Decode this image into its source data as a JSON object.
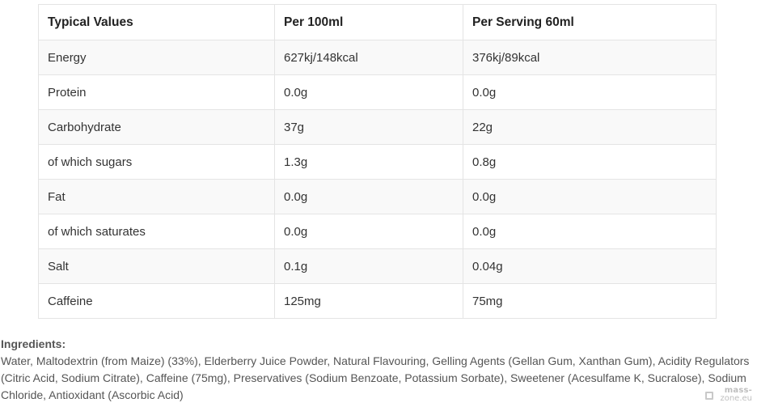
{
  "table": {
    "headers": [
      "Typical Values",
      "Per 100ml",
      "Per Serving 60ml"
    ],
    "rows": [
      [
        "Energy",
        "627kj/148kcal",
        "376kj/89kcal"
      ],
      [
        "Protein",
        "0.0g",
        "0.0g"
      ],
      [
        "Carbohydrate",
        "37g",
        "22g"
      ],
      [
        "of which sugars",
        "1.3g",
        "0.8g"
      ],
      [
        "Fat",
        "0.0g",
        "0.0g"
      ],
      [
        "of which saturates",
        "0.0g",
        "0.0g"
      ],
      [
        "Salt",
        "0.1g",
        "0.04g"
      ],
      [
        "Caffeine",
        "125mg",
        "75mg"
      ]
    ]
  },
  "ingredients": {
    "heading": "Ingredients:",
    "text": "Water, Maltodextrin (from Maize) (33%), Elderberry Juice Powder, Natural Flavouring, Gelling Agents (Gellan Gum, Xanthan Gum), Acidity Regulators (Citric Acid, Sodium Citrate), Caffeine (75mg), Preservatives (Sodium Benzoate, Potassium Sorbate), Sweetener (Acesulfame K, Sucralose), Sodium Chloride, Antioxidant (Ascorbic Acid)"
  },
  "watermark": {
    "line1": "mass-",
    "line2": "zone.eu"
  }
}
